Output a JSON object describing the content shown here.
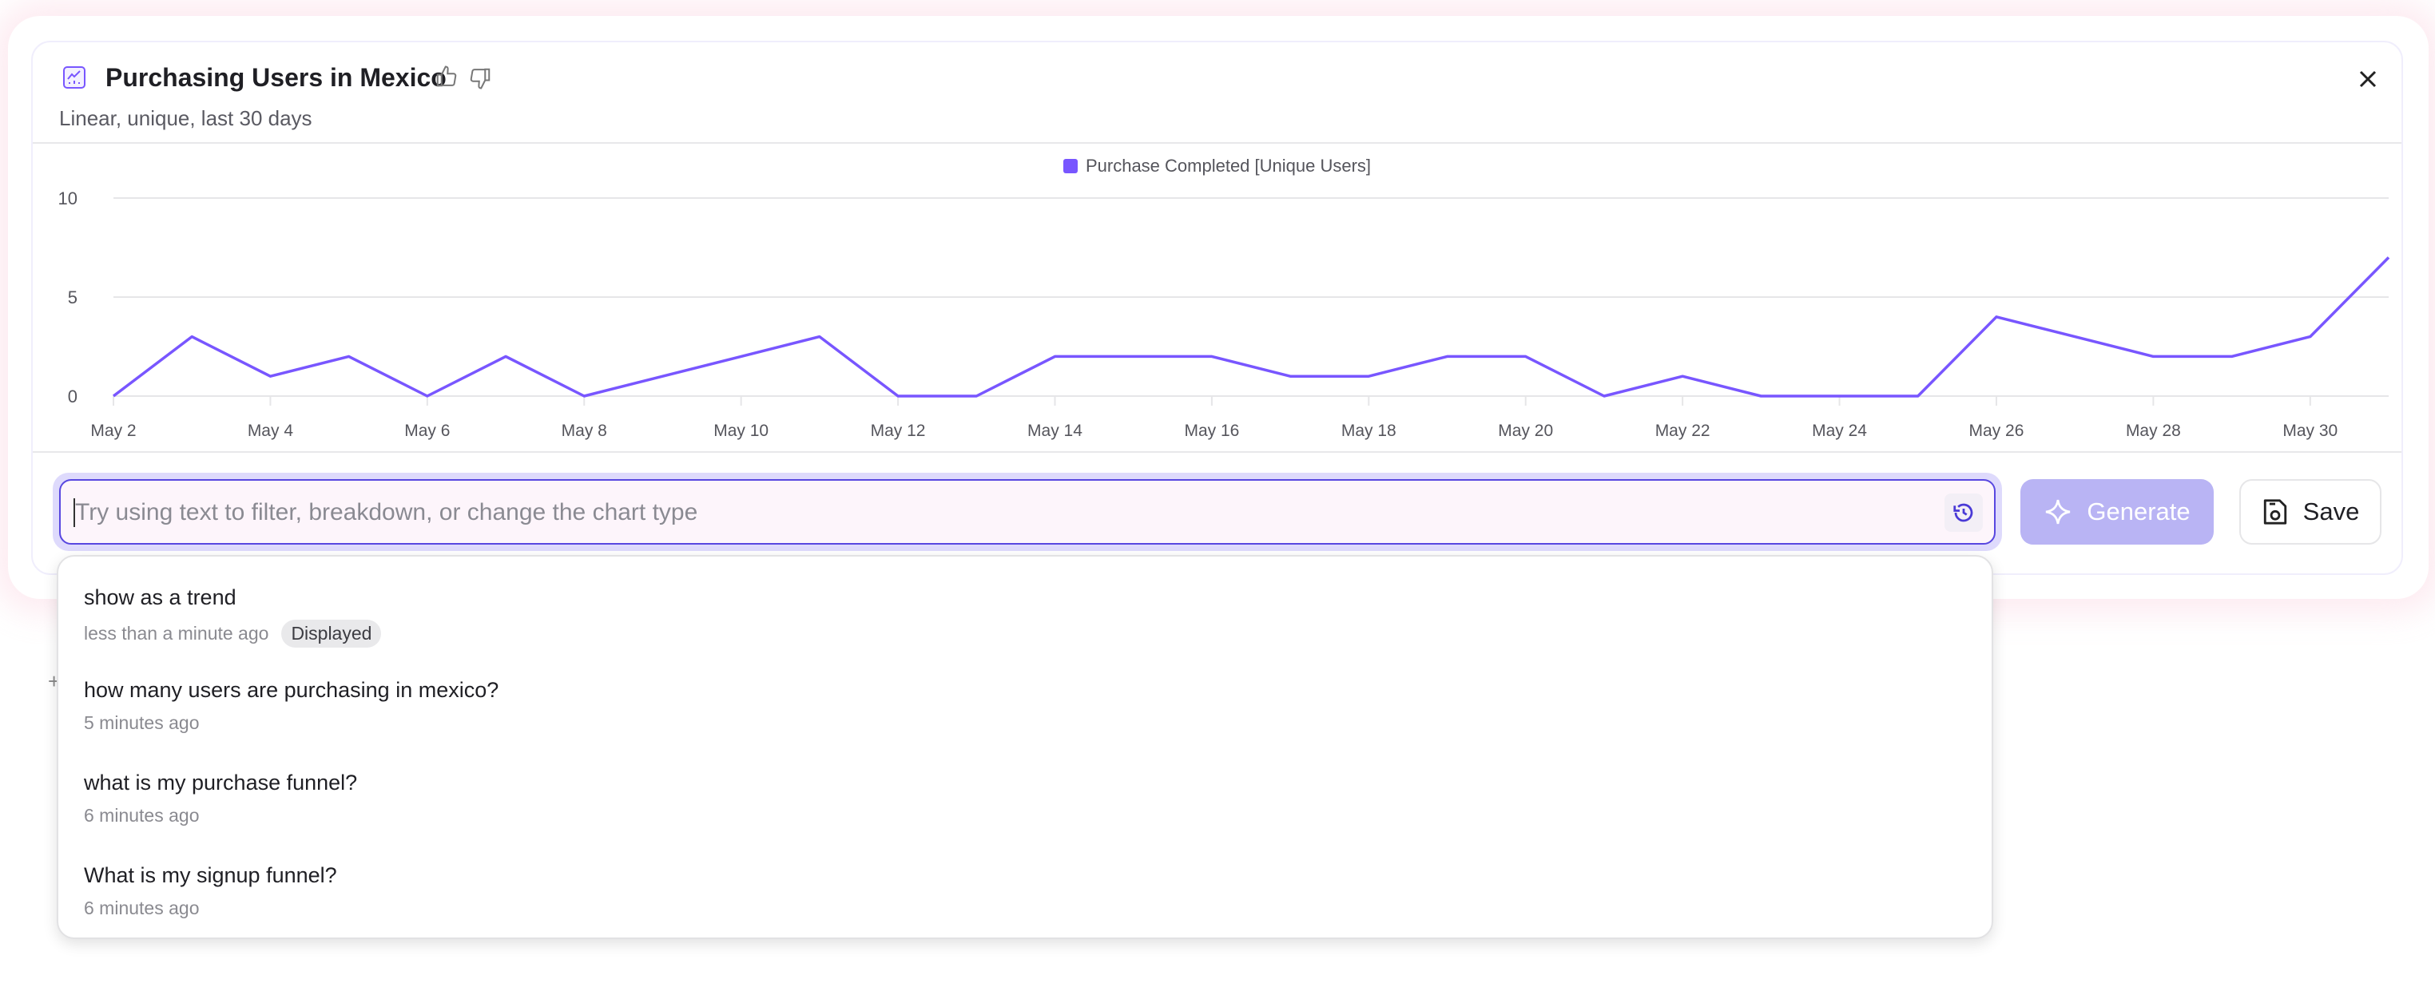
{
  "header": {
    "title": "Purchasing Users in Mexico",
    "subtitle": "Linear, unique, last 30 days",
    "icons": [
      "line-chart-icon",
      "thumbs-up-icon",
      "thumbs-down-icon",
      "close-icon"
    ]
  },
  "chart_data": {
    "type": "line",
    "legend": "Purchase Completed [Unique Users]",
    "legend_position": "top-center",
    "color": "#7856ff",
    "grid": true,
    "ylim": [
      0,
      10
    ],
    "y_ticks": [
      "0",
      "5",
      "10"
    ],
    "x_tick_labels": [
      "May 2",
      "May 4",
      "May 6",
      "May 8",
      "May 10",
      "May 12",
      "May 14",
      "May 16",
      "May 18",
      "May 20",
      "May 22",
      "May 24",
      "May 26",
      "May 28",
      "May 30"
    ],
    "x": [
      "May 2",
      "May 3",
      "May 4",
      "May 5",
      "May 6",
      "May 7",
      "May 8",
      "May 9",
      "May 10",
      "May 11",
      "May 12",
      "May 13",
      "May 14",
      "May 15",
      "May 16",
      "May 17",
      "May 18",
      "May 19",
      "May 20",
      "May 21",
      "May 22",
      "May 23",
      "May 24",
      "May 25",
      "May 26",
      "May 27",
      "May 28",
      "May 29",
      "May 30",
      "May 31"
    ],
    "series": [
      {
        "name": "Purchase Completed [Unique Users]",
        "values": [
          0,
          3,
          1,
          2,
          0,
          2,
          0,
          1,
          2,
          3,
          0,
          0,
          2,
          2,
          2,
          1,
          1,
          2,
          2,
          0,
          1,
          0,
          0,
          0,
          4,
          3,
          2,
          2,
          3,
          7
        ]
      }
    ]
  },
  "prompt": {
    "placeholder": "Try using text to filter, breakdown, or change the chart type",
    "value": ""
  },
  "buttons": {
    "generate": "Generate",
    "save": "Save"
  },
  "history": [
    {
      "query": "show as a trend",
      "time": "less than a minute ago",
      "badge": "Displayed"
    },
    {
      "query": "how many users are purchasing in mexico?",
      "time": "5 minutes ago"
    },
    {
      "query": "what is my purchase funnel?",
      "time": "6 minutes ago"
    },
    {
      "query": "What is my signup funnel?",
      "time": "6 minutes ago"
    }
  ],
  "colors": {
    "accent": "#7856ff",
    "input_border": "#5847e0",
    "generate_bg": "#b9b4f4"
  }
}
